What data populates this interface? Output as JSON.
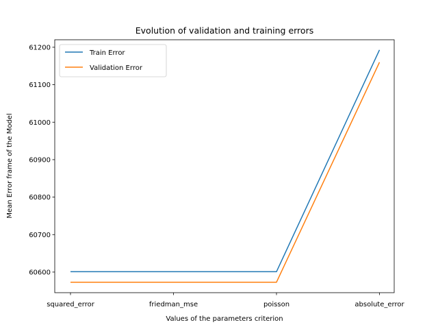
{
  "chart_data": {
    "type": "line",
    "title": "Evolution of validation and training errors",
    "xlabel": "Values of the parameters criterion",
    "ylabel": "Mean Error frame of the Model",
    "categories": [
      "squared_error",
      "friedman_mse",
      "poisson",
      "absolute_error"
    ],
    "series": [
      {
        "name": "Train Error",
        "values": [
          60601,
          60601,
          60601,
          61193
        ],
        "color": "#1f77b4"
      },
      {
        "name": "Validation Error",
        "values": [
          60573,
          60573,
          60573,
          61160
        ],
        "color": "#ff7f0e"
      }
    ],
    "ylim": [
      60545,
      61220
    ],
    "yticks": [
      60600,
      60700,
      60800,
      60900,
      61000,
      61100,
      61200
    ],
    "grid": false,
    "legend_position": "top-left"
  }
}
